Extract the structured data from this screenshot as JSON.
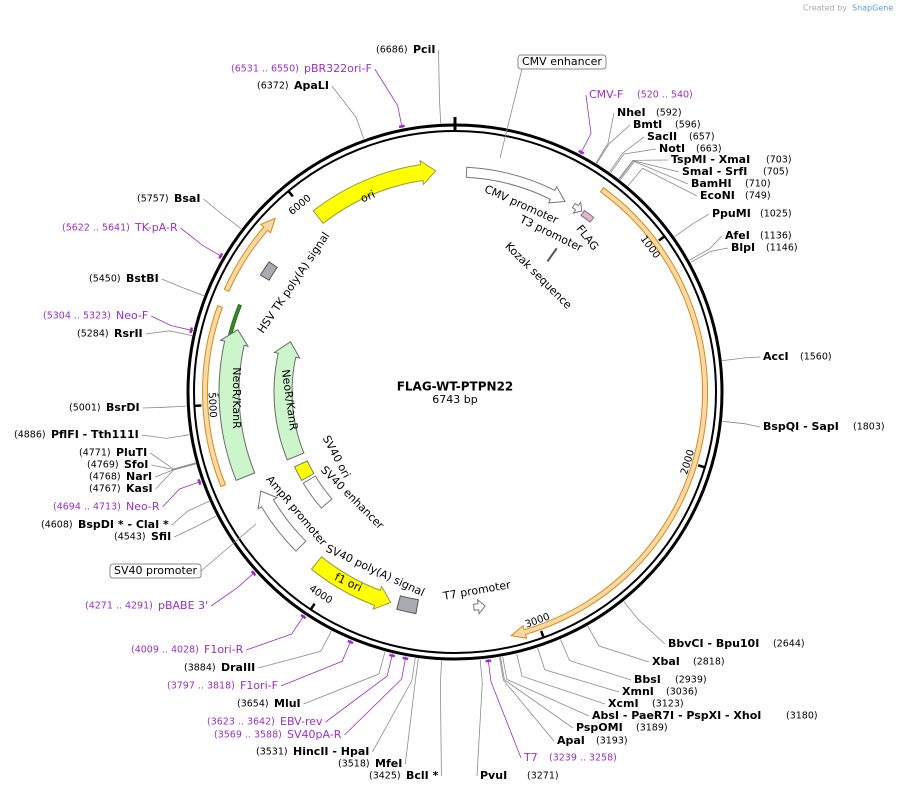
{
  "header": {
    "created_by": "Created by",
    "brand": "SnapGene"
  },
  "title": "FLAG-WT-PTPN22",
  "length": "6743 bp",
  "ruler": {
    "ticks": [
      1000,
      2000,
      3000,
      4000,
      5000,
      6000
    ]
  },
  "boxed_features": [
    {
      "name": "CMV enhancer"
    },
    {
      "name": "SV40 promoter"
    }
  ],
  "features": [
    "ori",
    "CMV promoter",
    "T3 promoter",
    "FLAG",
    "Kozak sequence",
    "HSV TK poly(A) signal",
    "NeoR/KanR",
    "NeoR/KanR",
    "SV40 ori",
    "SV40 enhancer",
    "AmpR promoter",
    "SV40 poly(A) signal",
    "f1 ori",
    "T7 promoter"
  ],
  "sites": [
    {
      "name": "PciI",
      "position": "(6686)"
    },
    {
      "name": "NheI",
      "position": "(592)"
    },
    {
      "name": "BmtI",
      "position": "(596)"
    },
    {
      "name": "SacII",
      "position": "(657)"
    },
    {
      "name": "NotI",
      "position": "(663)"
    },
    {
      "name": "TspMI  - XmaI",
      "position": "(703)"
    },
    {
      "name": "SmaI  - SrfI",
      "position": "(705)"
    },
    {
      "name": "BamHI",
      "position": "(710)"
    },
    {
      "name": "EcoNI",
      "position": "(749)"
    },
    {
      "name": "PpuMI",
      "position": "(1025)"
    },
    {
      "name": "AfeI",
      "position": "(1136)"
    },
    {
      "name": "BlpI",
      "position": "(1146)"
    },
    {
      "name": "AccI",
      "position": "(1560)"
    },
    {
      "name": "BspQI  - SapI",
      "position": "(1803)"
    },
    {
      "name": "BbvCI  - Bpu10I",
      "position": "(2644)"
    },
    {
      "name": "XbaI",
      "position": "(2818)"
    },
    {
      "name": "BbsI",
      "position": "(2939)"
    },
    {
      "name": "XmnI",
      "position": "(3036)"
    },
    {
      "name": "XcmI",
      "position": "(3123)"
    },
    {
      "name": "AbsI  - PaeR7I  - PspXI  - XhoI",
      "position": "(3180)"
    },
    {
      "name": "PspOMI",
      "position": "(3189)"
    },
    {
      "name": "ApaI",
      "position": "(3193)"
    },
    {
      "name": "PvuI",
      "position": "(3271)"
    },
    {
      "name": "BclI *",
      "position": "(3425)"
    },
    {
      "name": "MfeI",
      "position": "(3518)"
    },
    {
      "name": "HincII  - HpaI",
      "position": "(3531)"
    },
    {
      "name": "MluI",
      "position": "(3654)"
    },
    {
      "name": "DraIII",
      "position": "(3884)"
    },
    {
      "name": "SfiI",
      "position": "(4543)"
    },
    {
      "name": "BspDI *  - ClaI *",
      "position": "(4608)"
    },
    {
      "name": "KasI",
      "position": "(4767)"
    },
    {
      "name": "NarI",
      "position": "(4768)"
    },
    {
      "name": "SfoI",
      "position": "(4769)"
    },
    {
      "name": "PluTI",
      "position": "(4771)"
    },
    {
      "name": "PflFI  - Tth111I",
      "position": "(4886)"
    },
    {
      "name": "BsrDI",
      "position": "(5001)"
    },
    {
      "name": "RsrII",
      "position": "(5284)"
    },
    {
      "name": "BstBI",
      "position": "(5450)"
    },
    {
      "name": "BsaI",
      "position": "(5757)"
    },
    {
      "name": "ApaLI",
      "position": "(6372)"
    }
  ],
  "primers": [
    {
      "name": "CMV-F",
      "range": "(520 .. 540)"
    },
    {
      "name": "T7",
      "range": "(3239 .. 3258)"
    },
    {
      "name": "SV40pA-R",
      "range": "(3569 .. 3588)"
    },
    {
      "name": "EBV-rev",
      "range": "(3623 .. 3642)"
    },
    {
      "name": "F1ori-F",
      "range": "(3797 .. 3818)"
    },
    {
      "name": "F1ori-R",
      "range": "(4009 .. 4028)"
    },
    {
      "name": "pBABE 3'",
      "range": "(4271 .. 4291)"
    },
    {
      "name": "Neo-R",
      "range": "(4694 .. 4713)"
    },
    {
      "name": "Neo-F",
      "range": "(5304 .. 5323)"
    },
    {
      "name": "TK-pA-R",
      "range": "(5622 .. 5641)"
    },
    {
      "name": "pBR322ori-F",
      "range": "(6531 .. 6550)"
    }
  ]
}
